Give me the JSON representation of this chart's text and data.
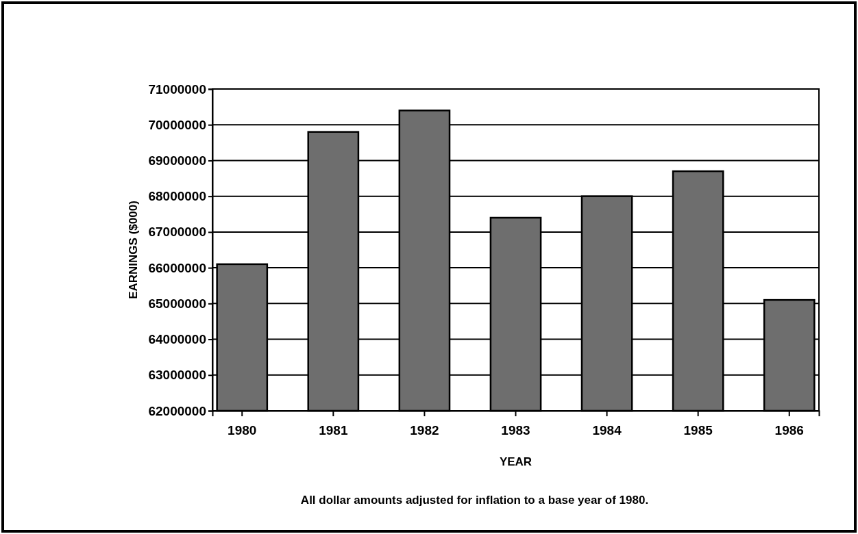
{
  "chart_data": {
    "type": "bar",
    "xlabel": "YEAR",
    "ylabel": "EARNINGS ($000)",
    "categories": [
      "1980",
      "1981",
      "1982",
      "1983",
      "1984",
      "1985",
      "1986"
    ],
    "values": [
      66100000,
      69800000,
      70400000,
      67400000,
      68000000,
      68700000,
      65100000
    ],
    "color": "#6e6e6e",
    "ylim": [
      62000000,
      71000000
    ],
    "yticks": [
      62000000,
      63000000,
      64000000,
      65000000,
      66000000,
      67000000,
      68000000,
      69000000,
      70000000,
      71000000
    ],
    "grid": "y",
    "annotations": [
      "All dollar amounts adjusted for inflation to a base year of 1980."
    ]
  }
}
